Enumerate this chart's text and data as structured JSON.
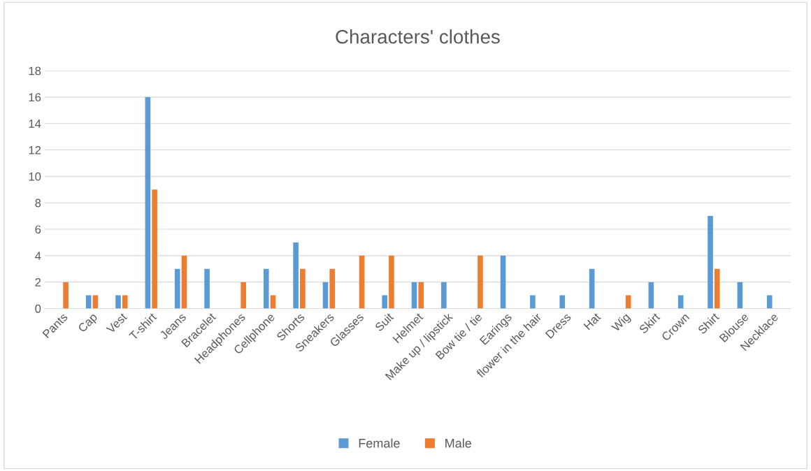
{
  "chart_data": {
    "type": "bar",
    "title": "Characters' clothes",
    "categories": [
      "Pants",
      "Cap",
      "Vest",
      "T-shirt",
      "Jeans",
      "Bracelet",
      "Headphones",
      "Cellphone",
      "Shorts",
      "Sneakers",
      "Glasses",
      "Suit",
      "Helmet",
      "Make up / lipstick",
      "Bow tie / tie",
      "Earings",
      "flower in the hair",
      "Dress",
      "Hat",
      "Wig",
      "Skirt",
      "Crown",
      "Shirt",
      "Blouse",
      "Necklace"
    ],
    "series": [
      {
        "name": "Female",
        "color": "#5b9bd5",
        "values": [
          0,
          1,
          1,
          16,
          3,
          3,
          0,
          3,
          5,
          2,
          0,
          1,
          2,
          2,
          0,
          4,
          1,
          1,
          3,
          0,
          2,
          1,
          7,
          2,
          1
        ]
      },
      {
        "name": "Male",
        "color": "#ed7d31",
        "values": [
          2,
          1,
          1,
          9,
          4,
          0,
          2,
          1,
          3,
          3,
          4,
          4,
          2,
          0,
          4,
          0,
          0,
          0,
          0,
          1,
          0,
          0,
          3,
          0,
          0
        ]
      }
    ],
    "ylim": [
      0,
      18
    ],
    "yticks": [
      0,
      2,
      4,
      6,
      8,
      10,
      12,
      14,
      16,
      18
    ],
    "grid": "y",
    "legend": "bottom"
  }
}
